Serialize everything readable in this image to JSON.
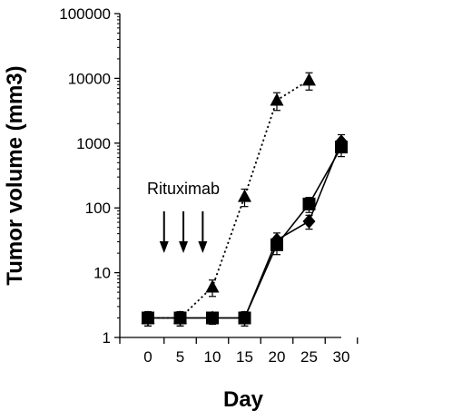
{
  "chart_data": {
    "type": "line",
    "title": "",
    "xlabel": "Day",
    "ylabel": "Tumor volume (mm3)",
    "y_scale": "log",
    "xlim": [
      -3.5,
      33
    ],
    "ylim": [
      1,
      100000
    ],
    "x_ticks": [
      0,
      5,
      10,
      15,
      20,
      25,
      30
    ],
    "x_tick_labels": [
      "0",
      "5",
      "10",
      "15",
      "20",
      "25",
      "30"
    ],
    "y_ticks": [
      1,
      10,
      100,
      1000,
      10000,
      100000
    ],
    "y_tick_labels": [
      "1",
      "10",
      "100",
      "1000",
      "10000",
      "100000"
    ],
    "grid": false,
    "legend": "none",
    "annotation": {
      "text": "Rituximab",
      "arrow_days": [
        2.5,
        5.5,
        8.5
      ]
    },
    "series": [
      {
        "marker": "triangle",
        "line_style": "dotted",
        "color": "#000000",
        "points": [
          {
            "x": 0,
            "y": 2,
            "err": 0.5
          },
          {
            "x": 5,
            "y": 2,
            "err": 0.5
          },
          {
            "x": 10,
            "y": 6,
            "err": 1.7
          },
          {
            "x": 15,
            "y": 150,
            "err": 45
          },
          {
            "x": 20,
            "y": 4600,
            "err": 1400
          },
          {
            "x": 25,
            "y": 9400,
            "err": 2800
          }
        ]
      },
      {
        "marker": "square",
        "line_style": "solid",
        "color": "#000000",
        "points": [
          {
            "x": 0,
            "y": 2,
            "err": 0.5
          },
          {
            "x": 5,
            "y": 2,
            "err": 0.5
          },
          {
            "x": 10,
            "y": 2,
            "err": 0.4
          },
          {
            "x": 15,
            "y": 2,
            "err": 0.5
          },
          {
            "x": 20,
            "y": 27,
            "err": 8
          },
          {
            "x": 25,
            "y": 115,
            "err": 30
          },
          {
            "x": 30,
            "y": 870,
            "err": 250
          }
        ]
      },
      {
        "marker": "diamond",
        "line_style": "solid",
        "color": "#000000",
        "points": [
          {
            "x": 0,
            "y": 2,
            "err": 0.5
          },
          {
            "x": 5,
            "y": 2,
            "err": 0.5
          },
          {
            "x": 10,
            "y": 2,
            "err": 0.4
          },
          {
            "x": 15,
            "y": 2,
            "err": 0.5
          },
          {
            "x": 20,
            "y": 32,
            "err": 9
          },
          {
            "x": 25,
            "y": 62,
            "err": 15
          },
          {
            "x": 30,
            "y": 1050,
            "err": 300
          }
        ]
      }
    ]
  }
}
